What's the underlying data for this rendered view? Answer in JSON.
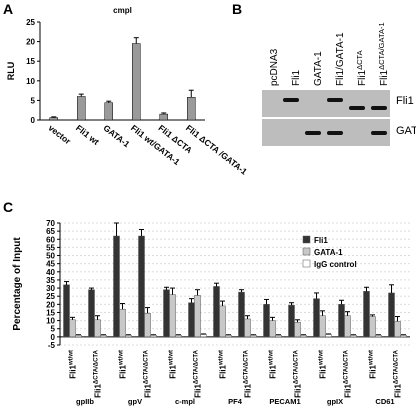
{
  "panel_labels": [
    "A",
    "B",
    "C"
  ],
  "chart_data": [
    {
      "type": "bar",
      "title": "cmpl",
      "ylabel": "RLU",
      "grid": false,
      "color": "#9a9a9a",
      "categories": [
        "vector",
        "Fli1 wt",
        "GATA-1",
        "Fli1 wt/GATA-1",
        "Fli1 ΔCTA",
        "Fli1 ΔCTA /GATA-1"
      ],
      "values": [
        0.6,
        6,
        4.4,
        19.5,
        1.5,
        5.8
      ],
      "errors": [
        0.2,
        0.6,
        0.4,
        1.5,
        0.3,
        1.8
      ],
      "ylim": [
        0,
        25
      ],
      "yticks": [
        0,
        5,
        10,
        15,
        20,
        25
      ]
    },
    {
      "type": "grouped_bar",
      "ylabel": "Percentage of Input",
      "grid": true,
      "legend": "top-right",
      "groups": [
        "gpIIb",
        "gpV",
        "c-mpl",
        "PF4",
        "PECAM1",
        "gpIX",
        "CD61"
      ],
      "categories": [
        {
          "text": "Fli1",
          "sup": "wt/wt"
        },
        {
          "text": "Fli1",
          "sup": "ΔCTA/ΔCTA"
        },
        {
          "text": "Fli1",
          "sup": "wt/wt"
        },
        {
          "text": "Fli1",
          "sup": "ΔCTA/ΔCTA"
        },
        {
          "text": "Fli1",
          "sup": "wt/wt"
        },
        {
          "text": "Fli1",
          "sup": "ΔCTA/ΔCTA"
        },
        {
          "text": "Fli1",
          "sup": "wt/wt"
        },
        {
          "text": "Fli1",
          "sup": "ΔCTA/ΔCTA"
        },
        {
          "text": "Fli1",
          "sup": "wt/wt"
        },
        {
          "text": "Fli1",
          "sup": "ΔCTA/ΔCTA"
        },
        {
          "text": "Fli1",
          "sup": "wt/wt"
        },
        {
          "text": "Fli1",
          "sup": "ΔCTA/ΔCTA"
        },
        {
          "text": "Fli1",
          "sup": "wt/wt"
        },
        {
          "text": "Fli1",
          "sup": "ΔCTA/ΔCTA"
        }
      ],
      "series": [
        {
          "name": "Fli1",
          "color": "#333333",
          "values": [
            32,
            29,
            62,
            62,
            29,
            21,
            31,
            27.5,
            20,
            19.5,
            23.5,
            20,
            28,
            27
          ],
          "errors": [
            2,
            1,
            8,
            4,
            1.5,
            2.5,
            2,
            1.5,
            3,
            1.5,
            3.5,
            2.5,
            2.5,
            5
          ]
        },
        {
          "name": "GATA-1",
          "color": "#c8c8c8",
          "values": [
            10.5,
            10.5,
            17,
            14.5,
            26,
            25.5,
            19,
            11,
            10,
            9,
            13,
            13,
            12.5,
            9.5
          ],
          "errors": [
            1.5,
            2.5,
            3.5,
            3.5,
            4,
            3.5,
            3,
            2,
            2,
            1.5,
            3,
            2.5,
            1,
            3
          ]
        },
        {
          "name": "IgG control",
          "color": "#ffffff",
          "values": [
            1,
            1,
            1,
            1,
            1,
            1.5,
            1,
            1,
            1,
            1,
            1.5,
            1,
            1,
            1
          ],
          "errors": [
            0.3,
            0.3,
            0.3,
            0.3,
            0.3,
            0.3,
            0.3,
            0.3,
            0.3,
            0.3,
            0.3,
            0.3,
            0.3,
            0.3
          ]
        }
      ],
      "ylim": [
        -5,
        70
      ],
      "yticks": [
        -5,
        0,
        5,
        10,
        15,
        20,
        25,
        30,
        35,
        40,
        45,
        50,
        55,
        60,
        65,
        70
      ]
    }
  ],
  "blot": {
    "lanes": [
      {
        "text": "pcDNA3",
        "sup": ""
      },
      {
        "text": "Fli1",
        "sup": ""
      },
      {
        "text": "GATA-1",
        "sup": ""
      },
      {
        "text": "Fli1/GATA-1",
        "sup": ""
      },
      {
        "text": "Fli1",
        "sup": "ΔCTA"
      },
      {
        "text": "Fli1",
        "sup": "ΔCTA/GATA-1"
      }
    ],
    "rows": [
      "Fli1",
      "GATA-1"
    ]
  }
}
